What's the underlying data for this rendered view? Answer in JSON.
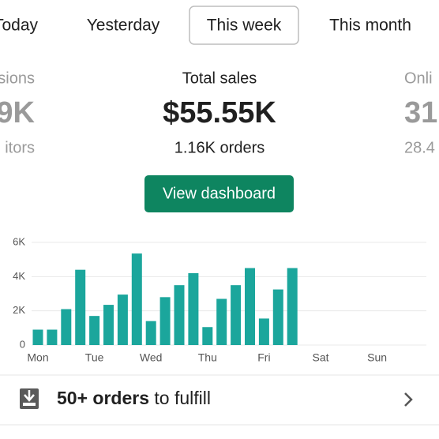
{
  "tabs": [
    "Today",
    "Yesterday",
    "This week",
    "This month"
  ],
  "selected_tab": 2,
  "stats": {
    "left": {
      "label": "sions",
      "value": "9K",
      "sub": "itors"
    },
    "center": {
      "label": "Total sales",
      "value": "$55.55K",
      "sub": "1.16K orders"
    },
    "right": {
      "label": "Onli",
      "value": "31",
      "sub": "28.4"
    }
  },
  "button": "View dashboard",
  "chart_data": {
    "type": "bar",
    "color": "#1ba69c",
    "categories": [
      "Mon",
      null,
      null,
      null,
      "Tue",
      null,
      null,
      null,
      "Wed",
      null,
      null,
      null,
      "Thu",
      null,
      null,
      null,
      "Fri",
      null,
      null,
      null,
      "Sat",
      null,
      null,
      null,
      "Sun",
      null,
      null,
      null
    ],
    "values": [
      900,
      900,
      2100,
      4400,
      1700,
      2350,
      2950,
      5350,
      1400,
      2800,
      3500,
      4200,
      1050,
      2700,
      3500,
      4500,
      1550,
      3250,
      4500,
      null,
      null,
      null,
      null,
      null,
      null,
      null,
      null,
      null
    ],
    "ylim": [
      0,
      6000
    ],
    "yticks": [
      0,
      {
        "value": 2000,
        "label": "2K"
      },
      {
        "value": 4000,
        "label": "4K"
      },
      {
        "value": 6000,
        "label": "6K"
      }
    ],
    "grid": true
  },
  "fulfill": {
    "bold": "50+ orders",
    "text": "to fulfill"
  }
}
